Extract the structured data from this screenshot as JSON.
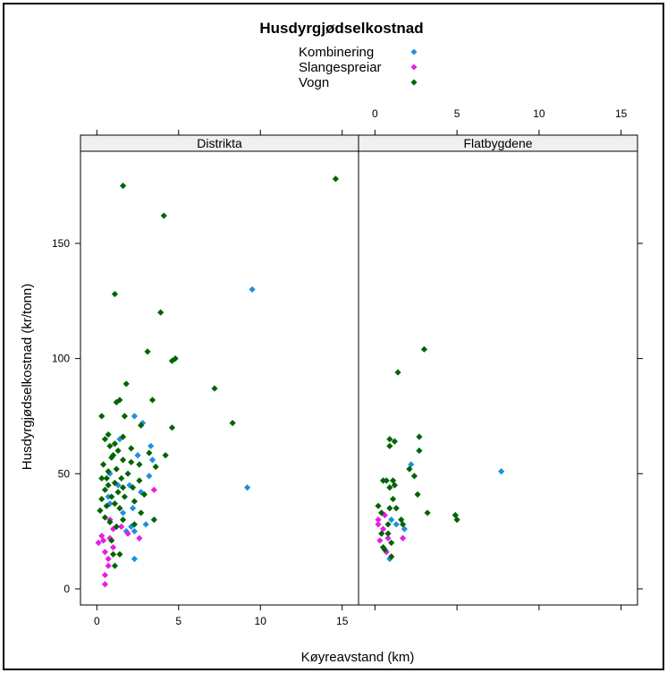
{
  "chart_data": {
    "type": "scatter",
    "title": "Husdyrgjødselkostnad",
    "xlabel": "Køyreavstand (km)",
    "ylabel": "Husdyrgjødselkostnad (kr/tonn)",
    "xlim": [
      -1,
      16
    ],
    "ylim": [
      -7,
      190
    ],
    "x_ticks": [
      0,
      5,
      10,
      15
    ],
    "y_ticks": [
      0,
      50,
      100,
      150
    ],
    "legend": {
      "placement": "top",
      "entries": [
        {
          "label": "Kombinering",
          "color": "#1e8fe0"
        },
        {
          "label": "Slangespreiar",
          "color": "#e61ee6"
        },
        {
          "label": "Vogn",
          "color": "#006400"
        }
      ]
    },
    "panels": [
      {
        "name": "Distrikta",
        "series": [
          {
            "name": "Kombinering",
            "color": "#1e8fe0",
            "points": [
              [
                9.5,
                130
              ],
              [
                9.2,
                44
              ],
              [
                2.3,
                75
              ],
              [
                2.8,
                72
              ],
              [
                3.3,
                62
              ],
              [
                2.5,
                58
              ],
              [
                3.4,
                56
              ],
              [
                2.0,
                45
              ],
              [
                1.3,
                45
              ],
              [
                2.7,
                42
              ],
              [
                0.8,
                50
              ],
              [
                0.7,
                40
              ],
              [
                1.4,
                65
              ],
              [
                3.2,
                49
              ],
              [
                2.2,
                35
              ],
              [
                1.6,
                33
              ],
              [
                2.1,
                27
              ],
              [
                1.8,
                25
              ],
              [
                3.0,
                28
              ],
              [
                2.3,
                25
              ],
              [
                2.3,
                13
              ],
              [
                0.8,
                37
              ]
            ]
          },
          {
            "name": "Slangespreiar",
            "color": "#e61ee6",
            "points": [
              [
                0.1,
                20
              ],
              [
                0.3,
                23
              ],
              [
                0.5,
                16
              ],
              [
                0.8,
                22
              ],
              [
                1.0,
                18
              ],
              [
                0.7,
                13
              ],
              [
                0.7,
                10
              ],
              [
                0.5,
                6
              ],
              [
                0.5,
                2
              ],
              [
                1.0,
                26
              ],
              [
                1.5,
                27
              ],
              [
                1.9,
                24
              ],
              [
                2.6,
                22
              ],
              [
                3.5,
                43
              ],
              [
                0.8,
                30
              ],
              [
                0.4,
                21
              ]
            ]
          },
          {
            "name": "Vogn",
            "color": "#006400",
            "points": [
              [
                14.6,
                178
              ],
              [
                1.6,
                175
              ],
              [
                4.1,
                162
              ],
              [
                1.1,
                128
              ],
              [
                3.9,
                120
              ],
              [
                3.1,
                103
              ],
              [
                4.8,
                100
              ],
              [
                4.6,
                99
              ],
              [
                1.8,
                89
              ],
              [
                7.2,
                87
              ],
              [
                1.4,
                82
              ],
              [
                1.2,
                81
              ],
              [
                3.4,
                82
              ],
              [
                0.3,
                75
              ],
              [
                1.7,
                75
              ],
              [
                8.3,
                72
              ],
              [
                2.7,
                71
              ],
              [
                4.6,
                70
              ],
              [
                1.6,
                66
              ],
              [
                0.7,
                67
              ],
              [
                0.5,
                65
              ],
              [
                1.1,
                63
              ],
              [
                0.8,
                62
              ],
              [
                2.1,
                61
              ],
              [
                1.3,
                60
              ],
              [
                3.2,
                59
              ],
              [
                4.2,
                58
              ],
              [
                0.9,
                57
              ],
              [
                1.6,
                56
              ],
              [
                2.1,
                55
              ],
              [
                0.4,
                54
              ],
              [
                2.6,
                54
              ],
              [
                1.2,
                52
              ],
              [
                0.7,
                51
              ],
              [
                3.6,
                53
              ],
              [
                1.9,
                50
              ],
              [
                0.3,
                48
              ],
              [
                1.5,
                48
              ],
              [
                2.6,
                47
              ],
              [
                1.1,
                46
              ],
              [
                0.7,
                45
              ],
              [
                1.6,
                44
              ],
              [
                2.2,
                44
              ],
              [
                0.5,
                43
              ],
              [
                1.3,
                42
              ],
              [
                2.9,
                41
              ],
              [
                0.9,
                40
              ],
              [
                1.7,
                40
              ],
              [
                0.3,
                39
              ],
              [
                2.3,
                38
              ],
              [
                1.1,
                37
              ],
              [
                0.6,
                36
              ],
              [
                1.4,
                35
              ],
              [
                0.2,
                34
              ],
              [
                2.7,
                33
              ],
              [
                0.5,
                31
              ],
              [
                1.6,
                30
              ],
              [
                3.5,
                30
              ],
              [
                0.8,
                29
              ],
              [
                2.3,
                28
              ],
              [
                1.2,
                27
              ],
              [
                0.9,
                21
              ],
              [
                1.0,
                15
              ],
              [
                1.4,
                15
              ],
              [
                1.1,
                10
              ],
              [
                0.6,
                48
              ],
              [
                1.0,
                58
              ]
            ]
          }
        ]
      },
      {
        "name": "Flatbygdene",
        "series": [
          {
            "name": "Kombinering",
            "color": "#1e8fe0",
            "points": [
              [
                7.7,
                51
              ],
              [
                2.2,
                54
              ],
              [
                1.8,
                26
              ],
              [
                1.3,
                28
              ],
              [
                1.0,
                30
              ],
              [
                0.9,
                13
              ]
            ]
          },
          {
            "name": "Slangespreiar",
            "color": "#e61ee6",
            "points": [
              [
                0.2,
                30
              ],
              [
                0.4,
                33
              ],
              [
                0.6,
                32
              ],
              [
                0.5,
                26
              ],
              [
                0.7,
                16
              ],
              [
                1.0,
                14
              ],
              [
                0.3,
                21
              ],
              [
                0.8,
                22
              ],
              [
                1.7,
                22
              ],
              [
                0.2,
                28
              ]
            ]
          },
          {
            "name": "Vogn",
            "color": "#006400",
            "points": [
              [
                3.0,
                104
              ],
              [
                1.4,
                94
              ],
              [
                0.9,
                65
              ],
              [
                1.2,
                64
              ],
              [
                0.9,
                62
              ],
              [
                2.7,
                66
              ],
              [
                2.7,
                60
              ],
              [
                0.5,
                47
              ],
              [
                0.7,
                47
              ],
              [
                1.1,
                47
              ],
              [
                1.2,
                45
              ],
              [
                0.9,
                44
              ],
              [
                1.1,
                39
              ],
              [
                2.4,
                49
              ],
              [
                2.1,
                52
              ],
              [
                2.6,
                41
              ],
              [
                0.9,
                35
              ],
              [
                0.4,
                33
              ],
              [
                3.2,
                33
              ],
              [
                4.9,
                32
              ],
              [
                5.0,
                30
              ],
              [
                1.6,
                30
              ],
              [
                1.7,
                28
              ],
              [
                0.4,
                24
              ],
              [
                0.8,
                24
              ],
              [
                1.0,
                20
              ],
              [
                0.5,
                18
              ],
              [
                0.6,
                17
              ],
              [
                1.0,
                14
              ],
              [
                0.2,
                36
              ],
              [
                1.3,
                35
              ],
              [
                0.8,
                28
              ]
            ]
          }
        ]
      }
    ]
  }
}
